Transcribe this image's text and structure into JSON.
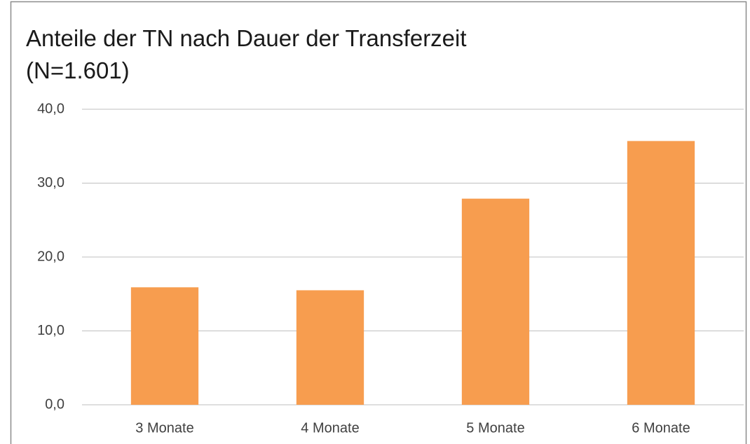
{
  "chart_data": {
    "type": "bar",
    "title": "Anteile der TN nach Dauer der Transferzeit",
    "subtitle": "(N=1.601)",
    "categories": [
      "3 Monate",
      "4 Monate",
      "5 Monate",
      "6 Monate"
    ],
    "values": [
      15.9,
      15.5,
      27.9,
      35.7
    ],
    "color": "#f79d4f",
    "ylim": [
      0,
      40
    ],
    "yticks": [
      {
        "value": 0,
        "label": "0,0"
      },
      {
        "value": 10,
        "label": "10,0"
      },
      {
        "value": 20,
        "label": "20,0"
      },
      {
        "value": 30,
        "label": "30,0"
      },
      {
        "value": 40,
        "label": "40,0"
      }
    ],
    "grid": true
  }
}
